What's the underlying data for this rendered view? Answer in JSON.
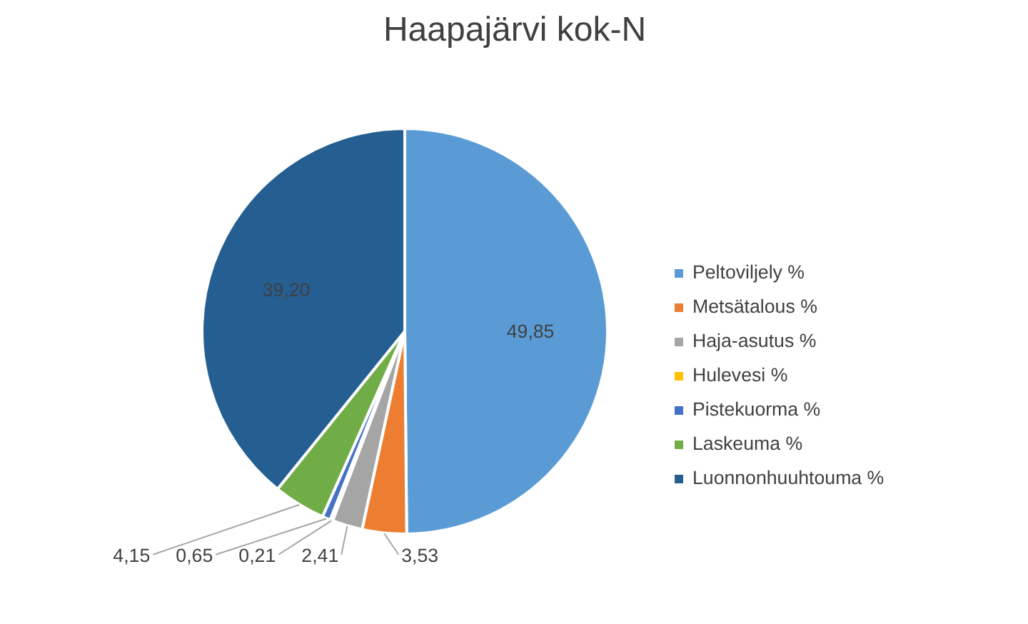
{
  "chart_data": {
    "type": "pie",
    "title": "Haapajärvi kok-N",
    "categories": [
      "Peltoviljely %",
      "Metsätalous %",
      "Haja-asutus %",
      "Hulevesi %",
      "Pistekuorma %",
      "Laskeuma %",
      "Luonnonhuuhtouma %"
    ],
    "values": [
      49.85,
      3.53,
      2.41,
      0.21,
      0.65,
      4.15,
      39.2
    ],
    "value_labels": [
      "49,85",
      "3,53",
      "2,41",
      "0,21",
      "0,65",
      "4,15",
      "39,20"
    ],
    "colors": [
      "#5b9bd5",
      "#ed7d31",
      "#a5a5a5",
      "#ffc000",
      "#4472c4",
      "#70ad47",
      "#255e91"
    ],
    "legend": "right"
  }
}
